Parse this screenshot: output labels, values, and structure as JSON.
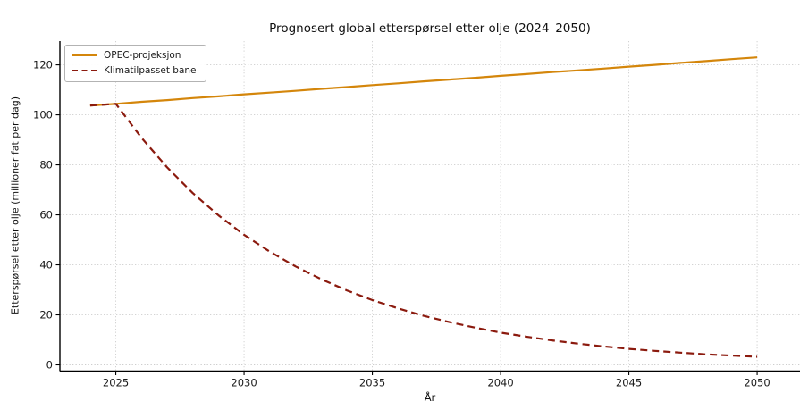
{
  "figure": {
    "background": "#ffffff"
  },
  "chart_data": {
    "type": "line",
    "title": "Prognosert global etterspørsel etter olje (2024–2050)",
    "xlabel": "År",
    "ylabel": "Etterspørsel etter olje (millioner fat per dag)",
    "x": [
      2024,
      2025,
      2026,
      2027,
      2028,
      2029,
      2030,
      2031,
      2032,
      2033,
      2034,
      2035,
      2036,
      2037,
      2038,
      2039,
      2040,
      2041,
      2042,
      2043,
      2044,
      2045,
      2046,
      2047,
      2048,
      2049,
      2050
    ],
    "series": [
      {
        "name": "OPEC-projeksjon",
        "color": "#d4860b",
        "style": "solid",
        "values": [
          103.7,
          104.4,
          105.2,
          105.9,
          106.7,
          107.4,
          108.2,
          108.9,
          109.6,
          110.4,
          111.1,
          111.9,
          112.6,
          113.4,
          114.1,
          114.8,
          115.6,
          116.3,
          117.1,
          117.8,
          118.5,
          119.3,
          120.0,
          120.8,
          121.5,
          122.3,
          123.0
        ]
      },
      {
        "name": "Klimatilpasset bane",
        "color": "#8b1a0e",
        "style": "dashed",
        "values": [
          103.7,
          104.4,
          90.8,
          79.0,
          68.7,
          59.8,
          52.0,
          45.3,
          39.4,
          34.3,
          29.8,
          25.9,
          22.6,
          19.6,
          17.1,
          14.9,
          12.9,
          11.3,
          9.8,
          8.5,
          7.4,
          6.4,
          5.6,
          4.9,
          4.2,
          3.7,
          3.2
        ]
      }
    ],
    "x_ticks": [
      2025,
      2030,
      2035,
      2040,
      2045,
      2050
    ],
    "y_ticks": [
      0,
      20,
      40,
      60,
      80,
      100,
      120
    ],
    "xlim": [
      2022.82,
      2051.67
    ],
    "ylim": [
      -2.5,
      129.5
    ],
    "grid": "dotted",
    "grid_color": "#cdcdcd",
    "axis_color": "#000000",
    "text_color": "#1a1a1a",
    "legend_position": "upper-left"
  }
}
